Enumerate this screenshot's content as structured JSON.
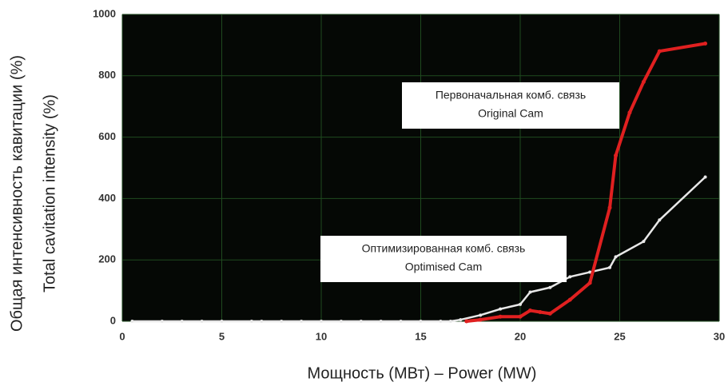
{
  "chart_data": {
    "type": "line",
    "x_label": "Мощность (МВт) – Power (MW)",
    "y_label": [
      "Общая интенсивность кавитации (%)",
      "Total cavitation intensity (%)"
    ],
    "xlim": [
      0,
      30
    ],
    "ylim": [
      0,
      1000
    ],
    "xticks": [
      0,
      5,
      10,
      15,
      20,
      25,
      30
    ],
    "yticks": [
      0,
      200,
      400,
      600,
      800,
      1000
    ],
    "grid": true,
    "background": "#050805",
    "grid_color": "#1f4a1f",
    "series": [
      {
        "color": "#e8e8e8",
        "x": [
          0.5,
          2,
          3,
          4,
          5,
          6.5,
          7,
          8,
          9,
          10,
          11,
          12,
          13,
          14,
          15,
          16,
          16.5,
          17,
          18,
          19,
          20,
          20.5,
          21.5,
          22.5,
          23.5,
          24.5,
          24.8,
          26.2,
          27,
          29.3
        ],
        "values": [
          0,
          0,
          0,
          0,
          0,
          0,
          0,
          0,
          0,
          0,
          0,
          0,
          0,
          0,
          0,
          0,
          0,
          5,
          20,
          40,
          55,
          95,
          110,
          145,
          160,
          175,
          210,
          260,
          330,
          470
        ]
      },
      {
        "color": "#e02020",
        "x": [
          17.3,
          18,
          19,
          20,
          20.5,
          21,
          21.5,
          22.5,
          23.5,
          24.5,
          24.8,
          25.5,
          26.2,
          27,
          29.3
        ],
        "values": [
          0,
          5,
          15,
          15,
          35,
          30,
          25,
          70,
          125,
          370,
          540,
          680,
          780,
          880,
          905
        ]
      }
    ],
    "annotations": [
      {
        "lines": [
          "Первоначальная комб. связь",
          "Original Cam"
        ]
      },
      {
        "lines": [
          "Оптимизированная комб. связь",
          "Optimised Cam"
        ]
      }
    ]
  }
}
